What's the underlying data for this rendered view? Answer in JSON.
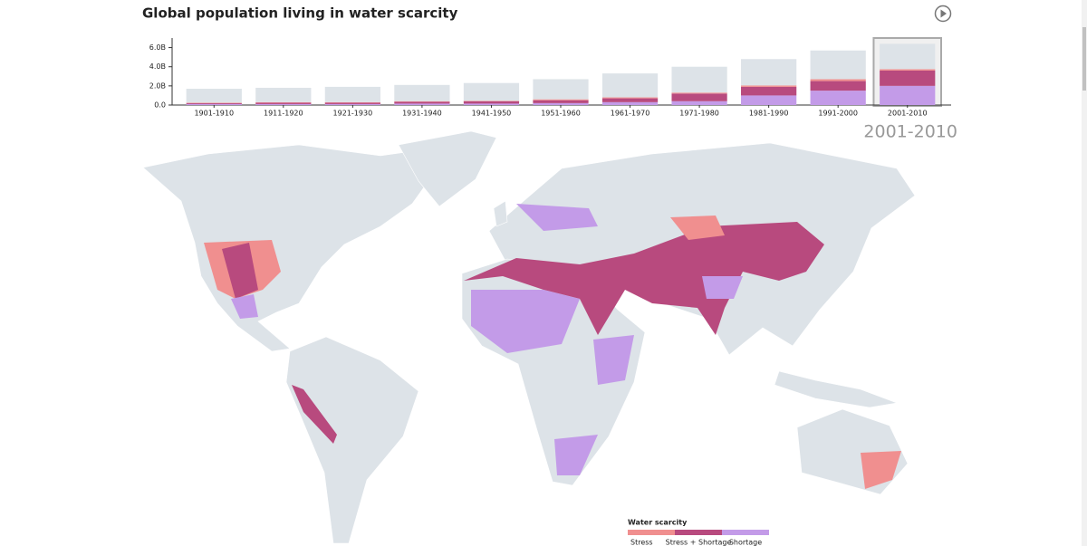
{
  "chart_data": {
    "type": "bar",
    "stacked": true,
    "title": "Global population living in water scarcity",
    "categories": [
      "1901-1910",
      "1911-1920",
      "1921-1930",
      "1931-1940",
      "1941-1950",
      "1951-1960",
      "1961-1970",
      "1971-1980",
      "1981-1990",
      "1991-2000",
      "2001-2010"
    ],
    "selected": 10,
    "series": [
      {
        "name": "Shortage",
        "color": "#c39be8",
        "values": [
          100000000,
          100000000,
          100000000,
          150000000,
          150000000,
          200000000,
          300000000,
          400000000,
          1000000000,
          1500000000,
          2000000000
        ]
      },
      {
        "name": "Stress + Shortage",
        "color": "#b84a7e",
        "values": [
          100000000,
          150000000,
          150000000,
          200000000,
          250000000,
          300000000,
          400000000,
          800000000,
          900000000,
          1000000000,
          1600000000
        ]
      },
      {
        "name": "Stress",
        "color": "#f08f8f",
        "values": [
          50000000,
          50000000,
          50000000,
          50000000,
          50000000,
          100000000,
          100000000,
          100000000,
          150000000,
          200000000,
          150000000
        ]
      },
      {
        "color": "#dde3e8",
        "values": [
          1450000000,
          1500000000,
          1600000000,
          1700000000,
          1850000000,
          2100000000,
          2500000000,
          2700000000,
          2750000000,
          3000000000,
          2650000000
        ]
      }
    ],
    "ylim": [
      0,
      7000000000
    ],
    "yticks": [
      {
        "value": 0,
        "label": "0.0"
      },
      {
        "value": 2000000000,
        "label": "2.0B"
      },
      {
        "value": 4000000000,
        "label": "4.0B"
      },
      {
        "value": 6000000000,
        "label": "6.0B"
      }
    ],
    "legend_title": "Water scarcity"
  }
}
